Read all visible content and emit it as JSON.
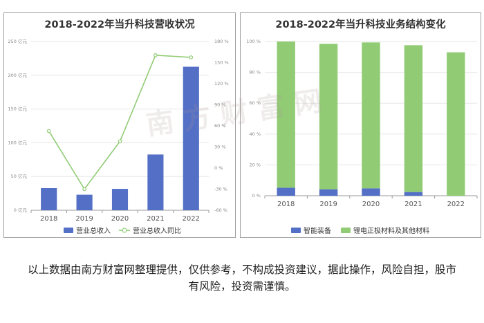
{
  "watermark": "南方财富网",
  "disclaimer": "以上数据由南方财富网整理提供，仅供参考，不构成投资建议，据此操作，风险自担，股市有风险，投资需谨慎。",
  "chart_data": [
    {
      "type": "bar+line",
      "title": "2018-2022年当升科技营收状况",
      "categories": [
        "2018",
        "2019",
        "2020",
        "2021",
        "2022"
      ],
      "y_ticks": [
        "0 亿元",
        "50 亿元",
        "100 亿元",
        "150 亿元",
        "200 亿元",
        "250 亿元"
      ],
      "ylim": [
        0,
        250
      ],
      "y2_ticks": [
        "-60 %",
        "-30 %",
        "0 %",
        "30 %",
        "60 %",
        "90 %",
        "120 %",
        "150 %",
        "180 %"
      ],
      "y2lim": [
        -60,
        180
      ],
      "series": [
        {
          "name": "营业总收入",
          "kind": "bar",
          "axis": "left",
          "color": "#5470c6",
          "values": [
            32.8,
            23.0,
            31.7,
            82.6,
            212.6
          ]
        },
        {
          "name": "营业总收入同比",
          "kind": "line",
          "axis": "right",
          "color": "#91cc75",
          "values": [
            52.6,
            -29.9,
            38.0,
            160.5,
            157.4
          ]
        }
      ],
      "legend_position": "bottom",
      "grid": "horizontal"
    },
    {
      "type": "stacked-bar",
      "title": "2018-2022年当升科技业务结构变化",
      "categories": [
        "2018",
        "2019",
        "2020",
        "2021",
        "2022"
      ],
      "y_ticks": [
        "0 %",
        "20 %",
        "40 %",
        "60 %",
        "80 %",
        "100 %"
      ],
      "ylim": [
        0,
        100
      ],
      "series": [
        {
          "name": "智能装备",
          "color": "#5470c6",
          "values": [
            5.2,
            4.2,
            4.8,
            2.4,
            0
          ]
        },
        {
          "name": "锂电正极材料及其他材料",
          "color": "#91cc75",
          "values": [
            94.8,
            94.3,
            94.6,
            95.2,
            93.0
          ]
        }
      ],
      "legend_position": "bottom",
      "grid": "horizontal"
    }
  ]
}
